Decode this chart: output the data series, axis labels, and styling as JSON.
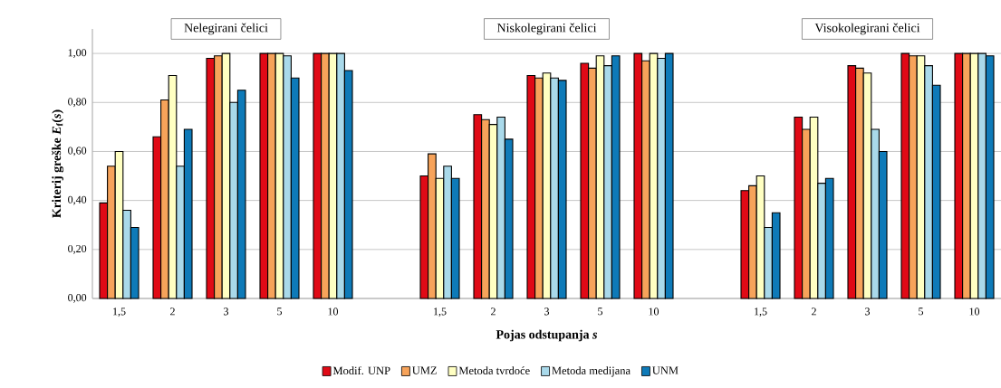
{
  "chart_data": {
    "type": "bar",
    "xlabel": "Pojas odstupanja *s*",
    "ylabel": "Kriterij greške *E*$_{f}$(*s*)",
    "categories": [
      "1,5",
      "2",
      "3",
      "5",
      "10",
      null,
      "1,5",
      "2",
      "3",
      "5",
      "10",
      null,
      "1,5",
      "2",
      "3",
      "5",
      "10"
    ],
    "annotations": [
      "Nelegirani čelici",
      "Niskolegirani čelici",
      "Visokolegirani čelici"
    ],
    "series": [
      {
        "name": "Modif. UNP",
        "color": "#e00a16",
        "values": [
          0.39,
          0.66,
          0.98,
          1.0,
          1.0,
          null,
          0.5,
          0.75,
          0.91,
          0.96,
          1.0,
          null,
          0.44,
          0.74,
          0.95,
          1.0,
          1.0
        ]
      },
      {
        "name": "UMZ",
        "color": "#f7a35a",
        "values": [
          0.54,
          0.81,
          0.99,
          1.0,
          1.0,
          null,
          0.59,
          0.73,
          0.9,
          0.94,
          0.97,
          null,
          0.46,
          0.69,
          0.94,
          0.99,
          1.0
        ]
      },
      {
        "name": "Metoda tvrdoće",
        "color": "#ffffc2",
        "values": [
          0.6,
          0.91,
          1.0,
          1.0,
          1.0,
          null,
          0.49,
          0.71,
          0.92,
          0.99,
          1.0,
          null,
          0.5,
          0.74,
          0.92,
          0.99,
          1.0
        ]
      },
      {
        "name": "Metoda medijana",
        "color": "#a9d9ea",
        "values": [
          0.36,
          0.54,
          0.8,
          0.99,
          1.0,
          null,
          0.54,
          0.74,
          0.9,
          0.95,
          0.98,
          null,
          0.29,
          0.47,
          0.69,
          0.95,
          1.0
        ]
      },
      {
        "name": "UNM",
        "color": "#0e7ab8",
        "values": [
          0.29,
          0.69,
          0.85,
          0.9,
          0.93,
          null,
          0.49,
          0.65,
          0.89,
          0.99,
          1.0,
          null,
          0.35,
          0.49,
          0.6,
          0.87,
          0.99
        ]
      }
    ],
    "ylim": [
      0,
      1.1
    ],
    "yticks": [
      {
        "value": 0,
        "label": "0,00"
      },
      {
        "value": 0.2,
        "label": "0,20"
      },
      {
        "value": 0.4,
        "label": "0,40"
      },
      {
        "value": 0.6,
        "label": "0,60"
      },
      {
        "value": 0.8,
        "label": "0,80"
      },
      {
        "value": 1.0,
        "label": "1,00"
      }
    ],
    "grid": "y",
    "legend": "bottom"
  }
}
